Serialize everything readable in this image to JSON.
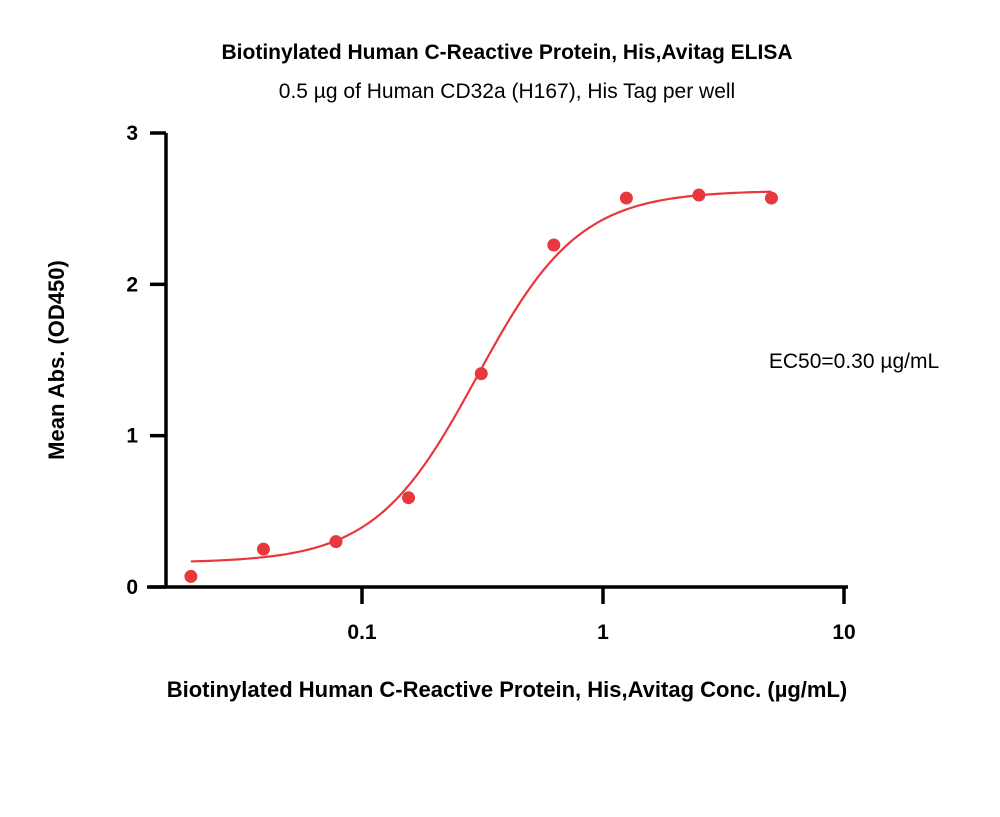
{
  "chart_data": {
    "type": "scatter",
    "title": "Biotinylated Human C-Reactive Protein, His,Avitag ELISA",
    "subtitle": "0.5 µg of Human CD32a (H167), His Tag per well",
    "xlabel": "Biotinylated Human C-Reactive Protein, His,Avitag Conc. (µg/mL)",
    "ylabel": "Mean Abs. (OD450)",
    "x_scale": "log",
    "xlim": [
      0.015,
      10
    ],
    "ylim": [
      0,
      3
    ],
    "x_ticks": [
      0.1,
      1,
      10
    ],
    "x_tick_labels": [
      "0.1",
      "1",
      "10"
    ],
    "y_ticks": [
      0,
      1,
      2,
      3
    ],
    "y_tick_labels": [
      "0",
      "1",
      "2",
      "3"
    ],
    "grid": false,
    "annotation": "EC50=0.30 µg/mL",
    "color": "#e8383d",
    "series": [
      {
        "x": [
          0.0195,
          0.039,
          0.078,
          0.156,
          0.3125,
          0.625,
          1.25,
          2.5,
          5
        ],
        "y": [
          0.07,
          0.25,
          0.3,
          0.59,
          1.41,
          2.26,
          2.57,
          2.59,
          2.57
        ]
      }
    ],
    "fit": {
      "model": "4PL",
      "bottom": 0.16,
      "top": 2.62,
      "ec50": 0.3,
      "hill": 2.05
    }
  }
}
